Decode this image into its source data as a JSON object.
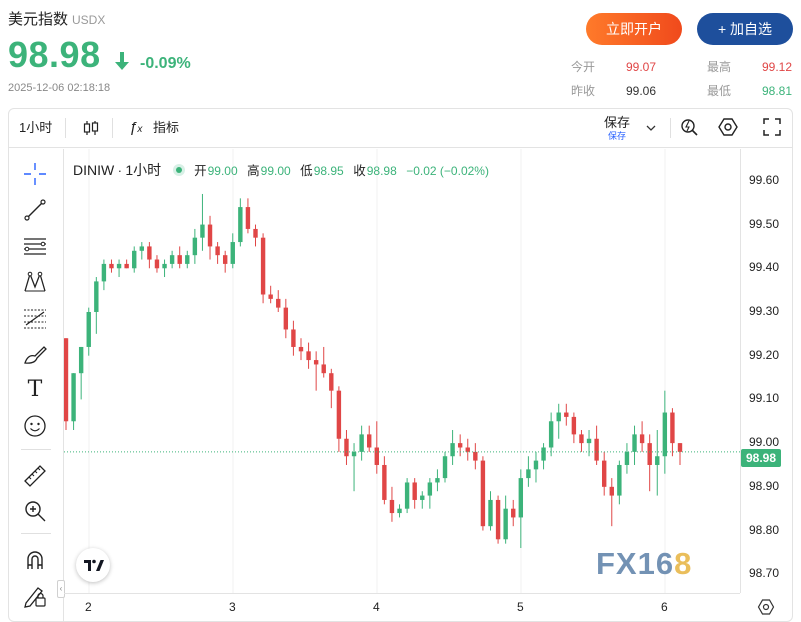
{
  "header": {
    "title": "美元指数",
    "code": "USDX",
    "price": "98.98",
    "change_pct": "-0.09%",
    "timestamp": "2025-12-06 02:18:18",
    "open_account_label": "立即开户",
    "add_watch_label": "+ 加自选"
  },
  "stats": {
    "today_open_label": "今开",
    "today_open": "99.07",
    "high_label": "最高",
    "high": "99.12",
    "prev_close_label": "昨收",
    "prev_close": "99.06",
    "low_label": "最低",
    "low": "98.81"
  },
  "toolbar": {
    "interval": "1小时",
    "indicators_label": "指标",
    "save_label": "保存",
    "save_sub_label": "保存"
  },
  "legend": {
    "symbol": "DINIW",
    "interval": "1小时",
    "open_label": "开",
    "open": "99.00",
    "high_label": "高",
    "high": "99.00",
    "low_label": "低",
    "low": "98.95",
    "close_label": "收",
    "close": "98.98",
    "change": "−0.02 (−0.02%)"
  },
  "watermark": {
    "text_a": "FX16",
    "text_b": "8"
  },
  "colors": {
    "up": "#3cb37a",
    "down": "#e04646",
    "brand_orange": "#f05a22",
    "brand_blue": "#1e4f9c"
  },
  "sidebar_icons": [
    "crosshair-icon",
    "trend-line-icon",
    "horizontal-lines-icon",
    "pattern-icon",
    "fib-icon",
    "brush-icon",
    "text-icon",
    "emoji-icon",
    "ruler-icon",
    "zoom-in-icon",
    "magnet-icon",
    "lock-pencil-icon"
  ],
  "chart_data": {
    "type": "candlestick",
    "ylim": [
      98.68,
      99.65
    ],
    "y_ticks": [
      "99.60",
      "99.50",
      "99.40",
      "99.30",
      "99.20",
      "99.10",
      "99.00",
      "98.90",
      "98.80",
      "98.70"
    ],
    "x_ticks": [
      "2",
      "3",
      "4",
      "5",
      "6"
    ],
    "last_price": "98.98",
    "candles": [
      [
        99.24,
        99.24,
        99.03,
        99.05
      ],
      [
        99.05,
        99.16,
        99.03,
        99.16
      ],
      [
        99.16,
        99.22,
        99.1,
        99.22
      ],
      [
        99.22,
        99.31,
        99.2,
        99.3
      ],
      [
        99.3,
        99.38,
        99.25,
        99.37
      ],
      [
        99.37,
        99.42,
        99.35,
        99.41
      ],
      [
        99.41,
        99.42,
        99.39,
        99.4
      ],
      [
        99.4,
        99.42,
        99.38,
        99.41
      ],
      [
        99.41,
        99.42,
        99.4,
        99.4
      ],
      [
        99.4,
        99.45,
        99.39,
        99.44
      ],
      [
        99.44,
        99.46,
        99.42,
        99.45
      ],
      [
        99.45,
        99.46,
        99.4,
        99.42
      ],
      [
        99.42,
        99.43,
        99.39,
        99.4
      ],
      [
        99.4,
        99.42,
        99.38,
        99.41
      ],
      [
        99.41,
        99.44,
        99.4,
        99.43
      ],
      [
        99.43,
        99.45,
        99.4,
        99.41
      ],
      [
        99.41,
        99.44,
        99.4,
        99.43
      ],
      [
        99.43,
        99.49,
        99.41,
        99.47
      ],
      [
        99.47,
        99.57,
        99.44,
        99.5
      ],
      [
        99.5,
        99.52,
        99.42,
        99.45
      ],
      [
        99.45,
        99.46,
        99.41,
        99.43
      ],
      [
        99.43,
        99.44,
        99.39,
        99.41
      ],
      [
        99.41,
        99.48,
        99.4,
        99.46
      ],
      [
        99.46,
        99.56,
        99.45,
        99.54
      ],
      [
        99.54,
        99.56,
        99.48,
        99.49
      ],
      [
        99.49,
        99.5,
        99.45,
        99.47
      ],
      [
        99.47,
        99.48,
        99.32,
        99.34
      ],
      [
        99.34,
        99.36,
        99.32,
        99.33
      ],
      [
        99.33,
        99.35,
        99.3,
        99.31
      ],
      [
        99.31,
        99.33,
        99.24,
        99.26
      ],
      [
        99.26,
        99.28,
        99.2,
        99.22
      ],
      [
        99.22,
        99.24,
        99.19,
        99.21
      ],
      [
        99.21,
        99.23,
        99.17,
        99.19
      ],
      [
        99.19,
        99.21,
        99.12,
        99.18
      ],
      [
        99.18,
        99.22,
        99.15,
        99.16
      ],
      [
        99.16,
        99.17,
        99.08,
        99.12
      ],
      [
        99.12,
        99.13,
        98.98,
        99.01
      ],
      [
        99.01,
        99.03,
        98.95,
        98.97
      ],
      [
        98.97,
        99.0,
        98.89,
        98.98
      ],
      [
        98.98,
        99.04,
        98.96,
        99.02
      ],
      [
        99.02,
        99.04,
        98.98,
        98.99
      ],
      [
        98.99,
        99.05,
        98.93,
        98.95
      ],
      [
        98.95,
        98.97,
        98.86,
        98.87
      ],
      [
        98.87,
        98.9,
        98.82,
        98.84
      ],
      [
        98.84,
        98.86,
        98.83,
        98.85
      ],
      [
        98.85,
        98.92,
        98.84,
        98.91
      ],
      [
        98.91,
        98.92,
        98.85,
        98.87
      ],
      [
        98.87,
        98.89,
        98.85,
        98.88
      ],
      [
        98.88,
        98.92,
        98.85,
        98.91
      ],
      [
        98.91,
        98.94,
        98.89,
        98.92
      ],
      [
        98.92,
        98.98,
        98.91,
        98.97
      ],
      [
        98.97,
        99.03,
        98.95,
        99.0
      ],
      [
        99.0,
        99.02,
        98.97,
        98.99
      ],
      [
        98.99,
        99.01,
        98.96,
        98.98
      ],
      [
        98.98,
        99.0,
        98.94,
        98.96
      ],
      [
        98.96,
        98.97,
        98.8,
        98.81
      ],
      [
        98.81,
        98.89,
        98.8,
        98.87
      ],
      [
        98.87,
        98.88,
        98.77,
        98.78
      ],
      [
        98.78,
        98.88,
        98.77,
        98.85
      ],
      [
        98.85,
        98.87,
        98.81,
        98.83
      ],
      [
        98.83,
        98.94,
        98.76,
        98.92
      ],
      [
        98.92,
        98.97,
        98.9,
        98.94
      ],
      [
        98.94,
        98.98,
        98.91,
        98.96
      ],
      [
        98.96,
        99.0,
        98.94,
        98.99
      ],
      [
        98.99,
        99.07,
        98.97,
        99.05
      ],
      [
        99.05,
        99.09,
        99.01,
        99.07
      ],
      [
        99.07,
        99.09,
        99.04,
        99.06
      ],
      [
        99.06,
        99.07,
        99.0,
        99.02
      ],
      [
        99.02,
        99.03,
        98.98,
        99.0
      ],
      [
        99.0,
        99.03,
        98.97,
        99.01
      ],
      [
        99.01,
        99.04,
        98.95,
        98.96
      ],
      [
        98.96,
        98.98,
        98.88,
        98.9
      ],
      [
        98.9,
        98.92,
        98.81,
        98.88
      ],
      [
        98.88,
        98.96,
        98.86,
        98.95
      ],
      [
        98.95,
        99.0,
        98.93,
        98.98
      ],
      [
        98.98,
        99.04,
        98.95,
        99.02
      ],
      [
        99.02,
        99.05,
        98.98,
        99.0
      ],
      [
        99.0,
        99.02,
        98.89,
        98.95
      ],
      [
        98.95,
        99.03,
        98.88,
        98.97
      ],
      [
        98.97,
        99.12,
        98.93,
        99.07
      ],
      [
        99.07,
        99.08,
        98.97,
        99.0
      ],
      [
        99.0,
        99.0,
        98.95,
        98.98
      ]
    ]
  }
}
